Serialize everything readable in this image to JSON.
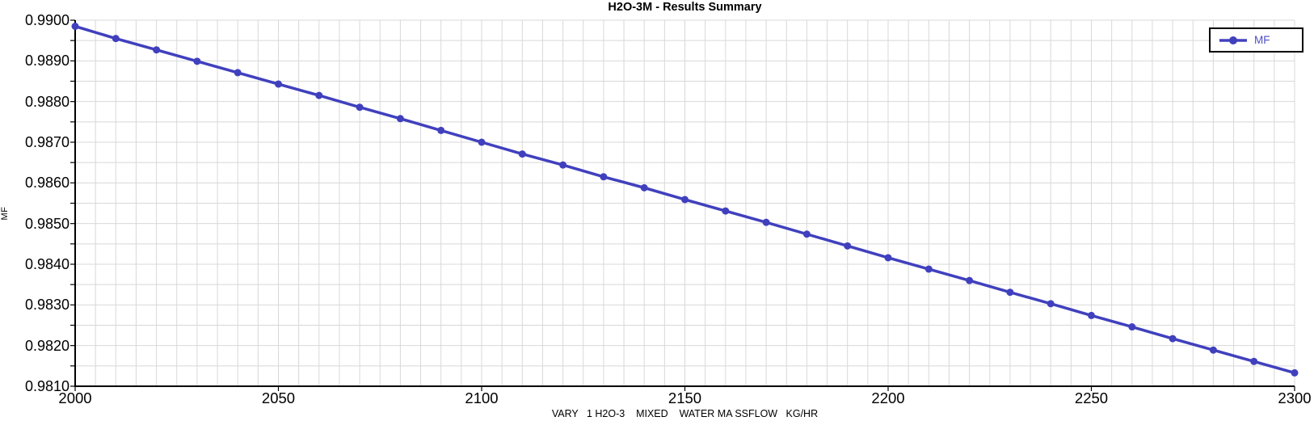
{
  "chart_data": {
    "type": "line",
    "title": "H2O-3M - Results Summary",
    "xlabel": "VARY   1 H2O-3    MIXED    WATER MA SSFLOW   KG/HR",
    "ylabel": "MF",
    "xlim": [
      2000,
      2300
    ],
    "ylim": [
      0.981,
      0.99
    ],
    "x_tick_step": 50,
    "x_grid_step": 5,
    "y_tick_step": 0.001,
    "y_grid_step": 0.0005,
    "y_tick_decimals": 4,
    "grid": true,
    "legend_position": "top-right",
    "x": [
      2000,
      2010,
      2020,
      2030,
      2040,
      2050,
      2060,
      2070,
      2080,
      2090,
      2100,
      2110,
      2120,
      2130,
      2140,
      2150,
      2160,
      2170,
      2180,
      2190,
      2200,
      2210,
      2220,
      2230,
      2240,
      2250,
      2260,
      2270,
      2280,
      2290,
      2300
    ],
    "series": [
      {
        "name": "MF",
        "values": [
          0.98985,
          0.98955,
          0.98927,
          0.98899,
          0.98871,
          0.98843,
          0.98815,
          0.98786,
          0.98758,
          0.98729,
          0.987,
          0.98671,
          0.98644,
          0.98615,
          0.98588,
          0.98559,
          0.98531,
          0.98503,
          0.98474,
          0.98445,
          0.98416,
          0.98388,
          0.9836,
          0.98331,
          0.98303,
          0.98274,
          0.98246,
          0.98217,
          0.98189,
          0.98161,
          0.98133
        ]
      }
    ],
    "colors": {
      "line": "#4040BE",
      "grid": "#D8D8D8",
      "axis": "#000000",
      "background": "#FFFFFF",
      "legend_text": "#4D4DC4"
    }
  }
}
